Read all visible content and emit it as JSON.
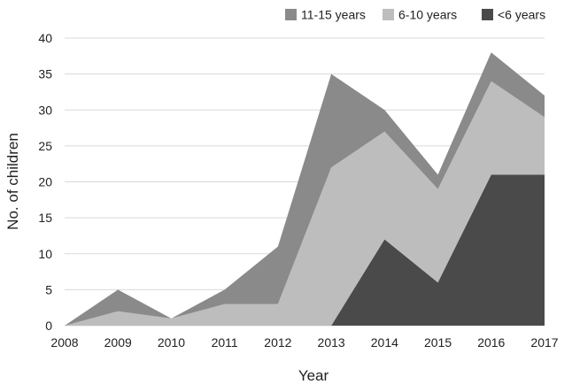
{
  "chart_data": {
    "type": "area",
    "stacked": true,
    "title": "",
    "xlabel": "Year",
    "ylabel": "No. of children",
    "x": [
      2008,
      2009,
      2010,
      2011,
      2012,
      2013,
      2014,
      2015,
      2016,
      2017
    ],
    "x_tick_labels": [
      "2008",
      "2009",
      "2010",
      "2011",
      "2012",
      "2013",
      "2014",
      "2015",
      "2016",
      "2017"
    ],
    "ylim": [
      0,
      40
    ],
    "y_ticks": [
      0,
      5,
      10,
      15,
      20,
      25,
      30,
      35,
      40
    ],
    "y_tick_labels": [
      "0",
      "5",
      "10",
      "15",
      "20",
      "25",
      "30",
      "35",
      "40"
    ],
    "grid": true,
    "legend_position": "top-right",
    "series": [
      {
        "name": "<6 years",
        "color": "#4a4a4a",
        "values": [
          0,
          0,
          0,
          0,
          0,
          0,
          12,
          6,
          21,
          21
        ]
      },
      {
        "name": "6-10 years",
        "color": "#bdbdbd",
        "values": [
          0,
          2,
          1,
          3,
          3,
          22,
          15,
          13,
          13,
          8
        ]
      },
      {
        "name": "11-15 years",
        "color": "#8a8a8a",
        "values": [
          0,
          3,
          0,
          2,
          8,
          13,
          3,
          2,
          4,
          3
        ]
      }
    ],
    "legend_order": [
      "11-15 years",
      "6-10 years",
      "<6 years"
    ]
  }
}
